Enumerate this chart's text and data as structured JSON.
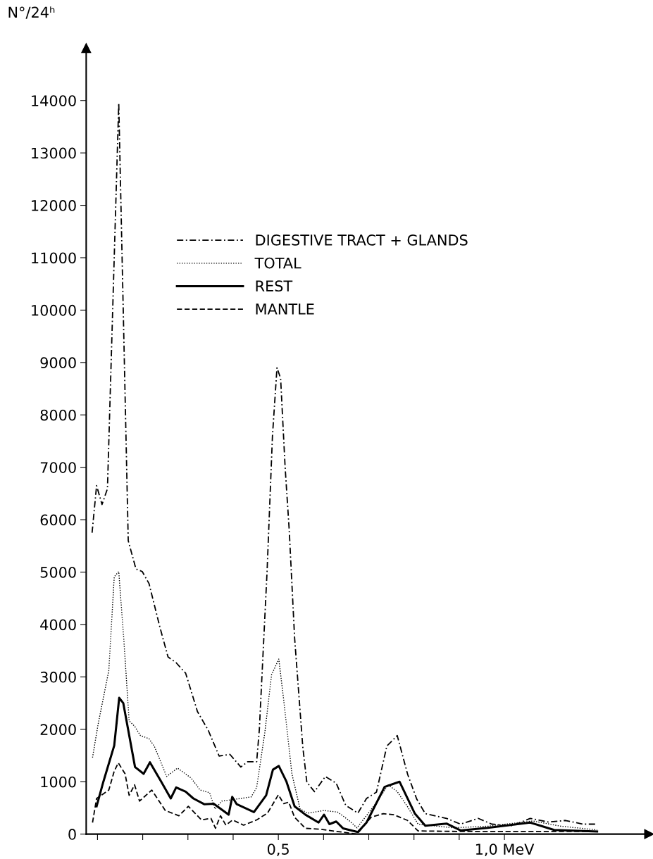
{
  "chart_data": {
    "type": "line",
    "ylabel": "N°/24ʰ",
    "xlim": [
      0.075,
      1.32
    ],
    "ylim": [
      0,
      15000
    ],
    "xticks": [
      {
        "value": 0.1,
        "label": null
      },
      {
        "value": 0.2,
        "label": null
      },
      {
        "value": 0.3,
        "label": null
      },
      {
        "value": 0.4,
        "label": null
      },
      {
        "value": 0.5,
        "label": "0,5"
      },
      {
        "value": 0.6,
        "label": null
      },
      {
        "value": 0.7,
        "label": null
      },
      {
        "value": 0.8,
        "label": null
      },
      {
        "value": 0.9,
        "label": null
      },
      {
        "value": 1.0,
        "label": "1,0 MeV"
      }
    ],
    "yticks": [
      0,
      1000,
      2000,
      3000,
      4000,
      5000,
      6000,
      7000,
      8000,
      9000,
      10000,
      11000,
      12000,
      13000,
      14000
    ],
    "grid": false,
    "legend": "top",
    "marker": "none",
    "series": [
      {
        "name": "DIGESTIVE TRACT + GLANDS",
        "color": "#000000",
        "line_style": "dashdot",
        "x": [
          0.088,
          0.098,
          0.11,
          0.122,
          0.147,
          0.168,
          0.185,
          0.199,
          0.214,
          0.238,
          0.256,
          0.274,
          0.295,
          0.321,
          0.345,
          0.369,
          0.393,
          0.417,
          0.432,
          0.452,
          0.458,
          0.475,
          0.487,
          0.497,
          0.505,
          0.515,
          0.524,
          0.536,
          0.554,
          0.563,
          0.58,
          0.604,
          0.628,
          0.649,
          0.676,
          0.695,
          0.717,
          0.74,
          0.763,
          0.786,
          0.806,
          0.825,
          0.872,
          0.903,
          0.942,
          0.972,
          1.018,
          1.057,
          1.097,
          1.135,
          1.174,
          1.205
        ],
        "values": [
          5750,
          6650,
          6290,
          6590,
          13950,
          5600,
          5060,
          5010,
          4780,
          3950,
          3380,
          3270,
          3070,
          2340,
          1980,
          1490,
          1520,
          1280,
          1380,
          1380,
          2000,
          5000,
          7600,
          8900,
          8700,
          7000,
          5810,
          3740,
          1670,
          990,
          810,
          1100,
          970,
          550,
          400,
          680,
          800,
          1680,
          1880,
          1140,
          670,
          390,
          300,
          190,
          300,
          190,
          160,
          300,
          230,
          260,
          190,
          190
        ]
      },
      {
        "name": "TOTAL",
        "color": "#000000",
        "line_style": "dotted",
        "x": [
          0.089,
          0.101,
          0.125,
          0.137,
          0.147,
          0.158,
          0.17,
          0.182,
          0.195,
          0.214,
          0.226,
          0.253,
          0.277,
          0.307,
          0.327,
          0.348,
          0.36,
          0.375,
          0.417,
          0.44,
          0.452,
          0.47,
          0.485,
          0.501,
          0.512,
          0.53,
          0.548,
          0.565,
          0.601,
          0.631,
          0.655,
          0.674,
          0.717,
          0.743,
          0.763,
          0.786,
          0.809,
          0.886,
          0.963,
          1.063,
          1.125,
          1.205
        ],
        "values": [
          1460,
          2080,
          3120,
          4910,
          5010,
          3740,
          2160,
          2060,
          1880,
          1820,
          1670,
          1100,
          1260,
          1070,
          840,
          790,
          480,
          630,
          680,
          710,
          890,
          1930,
          3040,
          3340,
          2550,
          1150,
          480,
          400,
          450,
          420,
          270,
          120,
          600,
          940,
          810,
          520,
          190,
          120,
          150,
          250,
          150,
          80
        ]
      },
      {
        "name": "REST",
        "color": "#000000",
        "line_style": "solid",
        "x": [
          0.098,
          0.113,
          0.137,
          0.148,
          0.157,
          0.183,
          0.202,
          0.216,
          0.241,
          0.262,
          0.274,
          0.295,
          0.312,
          0.336,
          0.357,
          0.39,
          0.398,
          0.408,
          0.446,
          0.473,
          0.488,
          0.501,
          0.518,
          0.536,
          0.56,
          0.589,
          0.601,
          0.613,
          0.628,
          0.643,
          0.676,
          0.695,
          0.735,
          0.768,
          0.802,
          0.825,
          0.872,
          0.903,
          0.963,
          1.057,
          1.11,
          1.205
        ],
        "values": [
          530,
          1000,
          1690,
          2600,
          2500,
          1280,
          1150,
          1370,
          1000,
          680,
          890,
          810,
          680,
          570,
          580,
          370,
          710,
          570,
          420,
          740,
          1230,
          1300,
          1000,
          530,
          370,
          220,
          370,
          190,
          240,
          110,
          40,
          220,
          900,
          1000,
          390,
          160,
          200,
          70,
          120,
          220,
          80,
          50
        ]
      },
      {
        "name": "MANTLE",
        "color": "#000000",
        "line_style": "dashed",
        "x": [
          0.089,
          0.098,
          0.125,
          0.137,
          0.146,
          0.161,
          0.17,
          0.182,
          0.193,
          0.22,
          0.25,
          0.28,
          0.301,
          0.33,
          0.351,
          0.361,
          0.372,
          0.384,
          0.399,
          0.423,
          0.452,
          0.476,
          0.5,
          0.512,
          0.523,
          0.536,
          0.56,
          0.595,
          0.674,
          0.705,
          0.732,
          0.755,
          0.786,
          0.809,
          0.9,
          1.0,
          1.1,
          1.205
        ],
        "values": [
          220,
          680,
          840,
          1200,
          1360,
          1150,
          740,
          940,
          630,
          840,
          450,
          350,
          530,
          270,
          300,
          110,
          350,
          170,
          270,
          170,
          270,
          400,
          750,
          580,
          610,
          320,
          110,
          90,
          0,
          320,
          390,
          370,
          260,
          60,
          50,
          50,
          50,
          50
        ]
      }
    ]
  }
}
